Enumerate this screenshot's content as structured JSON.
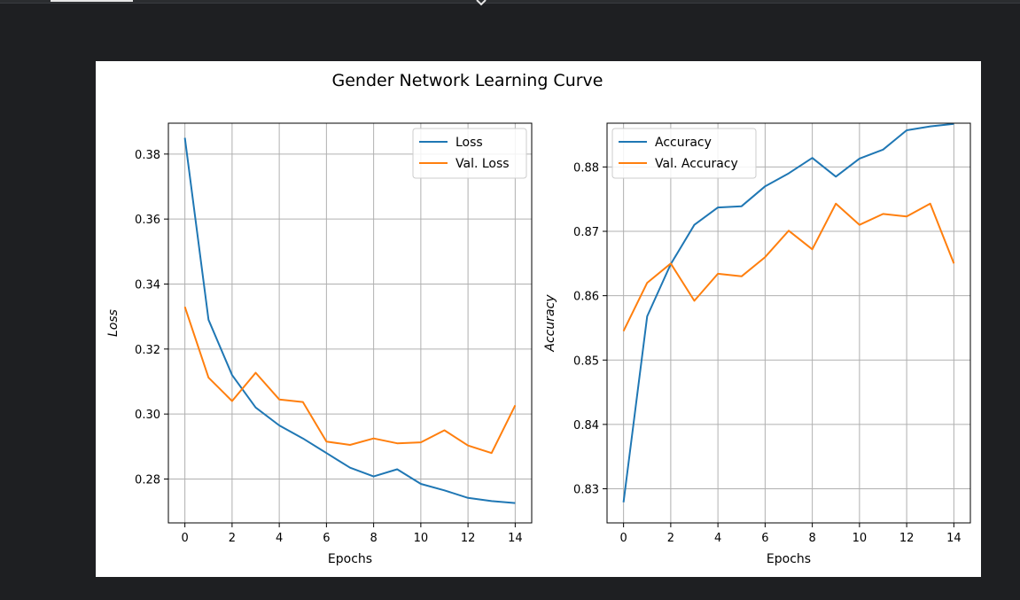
{
  "colors": {
    "page_background": "#1e1f22",
    "series_1": "#1f77b4",
    "series_2": "#ff7f0e",
    "grid": "#b0b0b0"
  },
  "toolbar": {
    "expand_icon": "chevron-down-icon"
  },
  "figure": {
    "title": "Gender Network Learning Curve"
  },
  "chart_data": [
    {
      "type": "line",
      "title": "",
      "xlabel": "Epochs",
      "ylabel": "Loss",
      "xlim": [
        -0.7,
        14.7
      ],
      "ylim": [
        0.2665,
        0.3895
      ],
      "xticks": [
        0,
        2,
        4,
        6,
        8,
        10,
        12,
        14
      ],
      "yticks": [
        0.28,
        0.3,
        0.32,
        0.34,
        0.36,
        0.38
      ],
      "ytick_labels": [
        "0.28",
        "0.30",
        "0.32",
        "0.34",
        "0.36",
        "0.38"
      ],
      "grid": true,
      "legend_position": "top-right",
      "x": [
        0,
        1,
        2,
        3,
        4,
        5,
        6,
        7,
        8,
        9,
        10,
        11,
        12,
        13,
        14
      ],
      "series": [
        {
          "name": "Loss",
          "color": "#1f77b4",
          "values": [
            0.385,
            0.329,
            0.312,
            0.302,
            0.2965,
            0.2925,
            0.288,
            0.2835,
            0.2808,
            0.283,
            0.2785,
            0.2765,
            0.2742,
            0.2732,
            0.2726
          ]
        },
        {
          "name": "Val. Loss",
          "color": "#ff7f0e",
          "values": [
            0.333,
            0.3112,
            0.304,
            0.3127,
            0.3045,
            0.3037,
            0.2915,
            0.2905,
            0.2925,
            0.291,
            0.2913,
            0.295,
            0.2903,
            0.288,
            0.3027
          ]
        }
      ]
    },
    {
      "type": "line",
      "title": "",
      "xlabel": "Epochs",
      "ylabel": "Accuracy",
      "xlim": [
        -0.7,
        14.7
      ],
      "ylim": [
        0.8247,
        0.8868
      ],
      "xticks": [
        0,
        2,
        4,
        6,
        8,
        10,
        12,
        14
      ],
      "yticks": [
        0.83,
        0.84,
        0.85,
        0.86,
        0.87,
        0.88
      ],
      "ytick_labels": [
        "0.83",
        "0.84",
        "0.85",
        "0.86",
        "0.87",
        "0.88"
      ],
      "grid": true,
      "legend_position": "top-left",
      "x": [
        0,
        1,
        2,
        3,
        4,
        5,
        6,
        7,
        8,
        9,
        10,
        11,
        12,
        13,
        14
      ],
      "series": [
        {
          "name": "Accuracy",
          "color": "#1f77b4",
          "values": [
            0.8279,
            0.8568,
            0.8649,
            0.871,
            0.8737,
            0.8739,
            0.877,
            0.879,
            0.8814,
            0.8785,
            0.8813,
            0.8827,
            0.8857,
            0.8863,
            0.8867
          ]
        },
        {
          "name": "Val. Accuracy",
          "color": "#ff7f0e",
          "values": [
            0.8545,
            0.862,
            0.865,
            0.8592,
            0.8634,
            0.863,
            0.866,
            0.8701,
            0.8672,
            0.8743,
            0.871,
            0.8727,
            0.8723,
            0.8743,
            0.865
          ]
        }
      ]
    }
  ]
}
